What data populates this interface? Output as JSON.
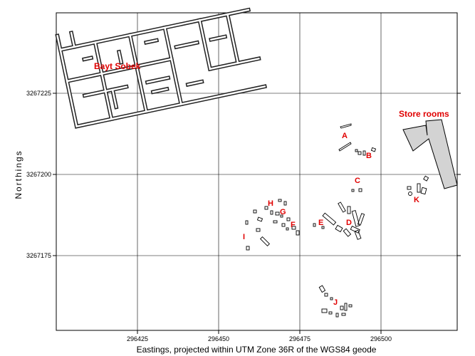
{
  "map": {
    "xlabel": "Eastings, projected within UTM Zone 36R of the WGS84 geode",
    "ylabel": "Northings",
    "x_ticks": [
      "296425",
      "296450",
      "296475",
      "296500"
    ],
    "y_ticks": [
      "3267225",
      "3267200",
      "3267175"
    ],
    "labels": {
      "bayt": "Bayt Sobek",
      "store": "Store rooms",
      "A": "A",
      "B": "B",
      "C": "C",
      "D": "D",
      "E": "E",
      "F": "F",
      "G": "G",
      "H": "H",
      "I": "I",
      "J": "J",
      "K": "K"
    },
    "colors": {
      "label": "#e00000",
      "grid": "#000000",
      "store_fill": "#d3d3d3"
    }
  }
}
